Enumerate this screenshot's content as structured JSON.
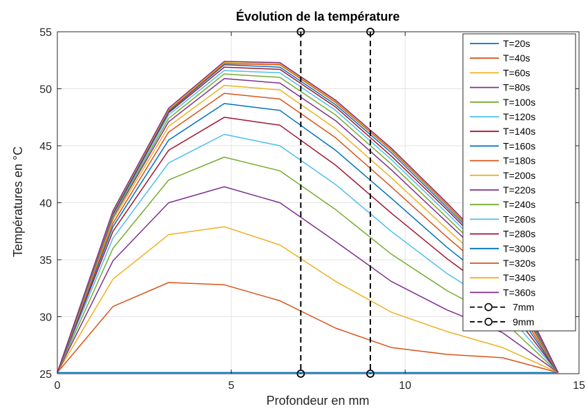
{
  "chart_data": {
    "type": "line",
    "title": "Évolution de la température",
    "xlabel": "Profondeur en mm",
    "ylabel": "Températures en °C",
    "xlim": [
      0,
      15
    ],
    "ylim": [
      25,
      55
    ],
    "xticks": [
      "0",
      "5",
      "10",
      "15"
    ],
    "yticks": [
      "25",
      "30",
      "35",
      "40",
      "45",
      "50",
      "55"
    ],
    "grid": true,
    "legend_position": "top-right",
    "x": [
      0,
      1.6,
      3.2,
      4.8,
      6.4,
      8.0,
      9.6,
      11.2,
      12.8,
      14.4
    ],
    "series": [
      {
        "name": "T=20s",
        "color": "#0072BD",
        "values": [
          25.1,
          25.1,
          25.1,
          25.1,
          25.1,
          25.1,
          25.1,
          25.1,
          25.1,
          25.1
        ]
      },
      {
        "name": "T=40s",
        "color": "#D95319",
        "values": [
          25.1,
          30.9,
          33.0,
          32.8,
          31.4,
          29.0,
          27.3,
          26.7,
          26.4,
          25.1
        ]
      },
      {
        "name": "T=60s",
        "color": "#EDB120",
        "values": [
          25.1,
          33.3,
          37.2,
          37.9,
          36.3,
          33.1,
          30.4,
          28.7,
          27.3,
          25.1
        ]
      },
      {
        "name": "T=80s",
        "color": "#7E2F8E",
        "values": [
          25.1,
          34.9,
          40.0,
          41.4,
          40.0,
          36.6,
          33.1,
          30.6,
          28.6,
          25.1
        ]
      },
      {
        "name": "T=100s",
        "color": "#77AC30",
        "values": [
          25.1,
          36.0,
          42.0,
          44.0,
          42.8,
          39.4,
          35.5,
          32.3,
          29.7,
          25.1
        ]
      },
      {
        "name": "T=120s",
        "color": "#4DBEEE",
        "values": [
          25.1,
          36.9,
          43.5,
          46.0,
          45.0,
          41.6,
          37.5,
          33.8,
          30.7,
          25.1
        ]
      },
      {
        "name": "T=140s",
        "color": "#A2142F",
        "values": [
          25.1,
          37.5,
          44.6,
          47.5,
          46.8,
          43.3,
          39.1,
          35.1,
          31.5,
          25.1
        ]
      },
      {
        "name": "T=160s",
        "color": "#0072BD",
        "values": [
          25.1,
          37.9,
          45.5,
          48.7,
          48.1,
          44.6,
          40.4,
          36.1,
          32.2,
          25.1
        ]
      },
      {
        "name": "T=180s",
        "color": "#D95319",
        "values": [
          25.1,
          38.2,
          46.2,
          49.6,
          49.1,
          45.7,
          41.4,
          37.0,
          32.8,
          25.1
        ]
      },
      {
        "name": "T=200s",
        "color": "#EDB120",
        "values": [
          25.1,
          38.5,
          46.7,
          50.3,
          49.9,
          46.5,
          42.2,
          37.7,
          33.3,
          25.1
        ]
      },
      {
        "name": "T=220s",
        "color": "#7E2F8E",
        "values": [
          25.1,
          38.7,
          47.1,
          50.9,
          50.5,
          47.2,
          42.9,
          38.3,
          33.7,
          25.1
        ]
      },
      {
        "name": "T=240s",
        "color": "#77AC30",
        "values": [
          25.1,
          38.8,
          47.4,
          51.3,
          51.0,
          47.7,
          43.4,
          38.7,
          34.0,
          25.1
        ]
      },
      {
        "name": "T=260s",
        "color": "#4DBEEE",
        "values": [
          25.1,
          38.9,
          47.7,
          51.6,
          51.4,
          48.1,
          43.8,
          39.1,
          34.3,
          25.1
        ]
      },
      {
        "name": "T=280s",
        "color": "#A2142F",
        "values": [
          25.1,
          39.0,
          47.9,
          51.9,
          51.7,
          48.4,
          44.1,
          39.4,
          34.5,
          25.1
        ]
      },
      {
        "name": "T=300s",
        "color": "#0072BD",
        "values": [
          25.1,
          39.1,
          48.0,
          52.1,
          51.9,
          48.6,
          44.4,
          39.6,
          34.7,
          25.1
        ]
      },
      {
        "name": "T=320s",
        "color": "#D95319",
        "values": [
          25.1,
          39.2,
          48.1,
          52.2,
          52.1,
          48.8,
          44.6,
          39.8,
          34.8,
          25.1
        ]
      },
      {
        "name": "T=340s",
        "color": "#EDB120",
        "values": [
          25.1,
          39.2,
          48.2,
          52.3,
          52.2,
          48.9,
          44.7,
          39.9,
          34.9,
          25.1
        ]
      },
      {
        "name": "T=360s",
        "color": "#7E2F8E",
        "values": [
          25.1,
          39.3,
          48.3,
          52.4,
          52.3,
          49.0,
          44.8,
          40.0,
          35.0,
          25.1
        ]
      }
    ],
    "vlines": [
      {
        "name": "7mm",
        "x": 7,
        "color": "#000000"
      },
      {
        "name": "9mm",
        "x": 9,
        "color": "#000000"
      }
    ]
  }
}
